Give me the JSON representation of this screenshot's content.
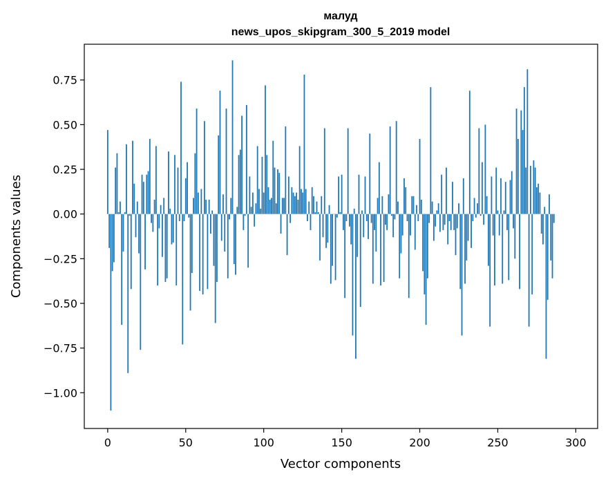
{
  "chart_data": {
    "type": "bar",
    "title_line1": "малуд",
    "title_line2": "news_upos_skipgram_300_5_2019 model",
    "xlabel": "Vector components",
    "ylabel": "Components values",
    "xlim": [
      -15,
      314
    ],
    "ylim": [
      -1.2,
      0.95
    ],
    "x_ticks": [
      0,
      50,
      100,
      150,
      200,
      250,
      300
    ],
    "x_tick_labels": [
      "0",
      "50",
      "100",
      "150",
      "200",
      "250",
      "300"
    ],
    "y_ticks": [
      0.75,
      0.5,
      0.25,
      0.0,
      -0.25,
      -0.5,
      -0.75,
      -1.0
    ],
    "y_tick_labels": [
      "0.75",
      "0.50",
      "0.25",
      "0.00",
      "−0.25",
      "−0.50",
      "−0.75",
      "−1.00"
    ],
    "bar_color": "#1f77b4",
    "values": [
      0.47,
      -0.19,
      -1.1,
      -0.32,
      -0.27,
      0.26,
      0.34,
      0.01,
      0.07,
      -0.62,
      -0.21,
      0.01,
      0.39,
      -0.89,
      -0.01,
      -0.42,
      0.41,
      0.17,
      -0.13,
      0.07,
      -0.22,
      -0.76,
      0.22,
      0.18,
      -0.31,
      0.22,
      0.24,
      0.42,
      -0.05,
      -0.1,
      0.08,
      0.38,
      -0.4,
      -0.08,
      0.05,
      -0.24,
      0.09,
      -0.38,
      -0.36,
      0.35,
      0.03,
      -0.17,
      -0.16,
      0.33,
      -0.4,
      0.26,
      -0.04,
      0.74,
      -0.73,
      -0.04,
      0.2,
      0.29,
      -0.02,
      -0.54,
      -0.33,
      0.09,
      0.34,
      0.59,
      0.12,
      -0.43,
      0.14,
      -0.45,
      0.52,
      0.08,
      -0.42,
      0.08,
      -0.11,
      0.02,
      -0.29,
      -0.61,
      -0.38,
      0.44,
      0.69,
      -0.15,
      0.11,
      -0.21,
      0.59,
      -0.36,
      -0.03,
      0.09,
      0.86,
      -0.28,
      -0.34,
      0.04,
      0.33,
      0.36,
      0.55,
      -0.09,
      -0.01,
      0.61,
      -0.3,
      0.21,
      0.04,
      0.12,
      -0.07,
      0.06,
      0.38,
      0.14,
      0.03,
      0.32,
      0.12,
      0.72,
      0.33,
      0.15,
      0.08,
      0.09,
      0.41,
      0.26,
      0.06,
      0.25,
      0.23,
      -0.11,
      0.09,
      0.09,
      0.49,
      -0.23,
      0.21,
      -0.05,
      0.15,
      0.12,
      0.1,
      0.12,
      0.08,
      0.38,
      0.14,
      0.12,
      0.78,
      0.14,
      -0.04,
      0.07,
      -0.09,
      0.15,
      0.1,
      0.01,
      0.07,
      0.01,
      -0.26,
      0.1,
      -0.13,
      0.48,
      -0.19,
      -0.16,
      0.05,
      -0.39,
      -0.29,
      0.0,
      -0.37,
      -0.02,
      0.21,
      0.01,
      0.22,
      -0.09,
      -0.47,
      -0.04,
      0.48,
      -0.07,
      -0.17,
      -0.68,
      0.03,
      -0.81,
      -0.24,
      0.22,
      -0.52,
      0.02,
      -0.13,
      0.21,
      -0.04,
      -0.14,
      0.45,
      -0.05,
      -0.39,
      -0.09,
      -0.21,
      0.09,
      0.29,
      -0.4,
      0.1,
      -0.38,
      -0.06,
      -0.09,
      0.11,
      0.49,
      -0.01,
      -0.13,
      -0.03,
      0.52,
      0.07,
      -0.36,
      -0.22,
      -0.12,
      0.2,
      0.15,
      -0.04,
      -0.47,
      -0.12,
      0.1,
      0.1,
      -0.2,
      0.05,
      -0.04,
      0.42,
      0.08,
      -0.32,
      -0.45,
      -0.62,
      -0.36,
      -0.05,
      0.71,
      0.07,
      -0.15,
      -0.07,
      0.02,
      0.06,
      -0.1,
      0.22,
      -0.09,
      -0.06,
      0.26,
      -0.17,
      -0.04,
      -0.09,
      0.18,
      -0.09,
      -0.23,
      -0.08,
      0.06,
      -0.42,
      -0.68,
      0.2,
      -0.39,
      -0.26,
      -0.15,
      0.69,
      -0.19,
      -0.04,
      0.09,
      -0.02,
      0.06,
      0.48,
      -0.01,
      0.29,
      -0.06,
      0.5,
      0.1,
      -0.29,
      -0.63,
      0.21,
      -0.12,
      -0.4,
      0.26,
      0.02,
      -0.12,
      0.2,
      -0.39,
      0.02,
      0.18,
      -0.09,
      -0.37,
      0.19,
      0.24,
      -0.08,
      -0.25,
      0.59,
      0.42,
      -0.42,
      0.58,
      0.47,
      0.71,
      0.26,
      0.81,
      -0.63,
      0.27,
      -0.45,
      0.3,
      0.26,
      0.15,
      0.17,
      0.12,
      -0.11,
      -0.17,
      0.04,
      -0.81,
      -0.48,
      0.11,
      -0.26,
      -0.36,
      -0.05
    ]
  }
}
